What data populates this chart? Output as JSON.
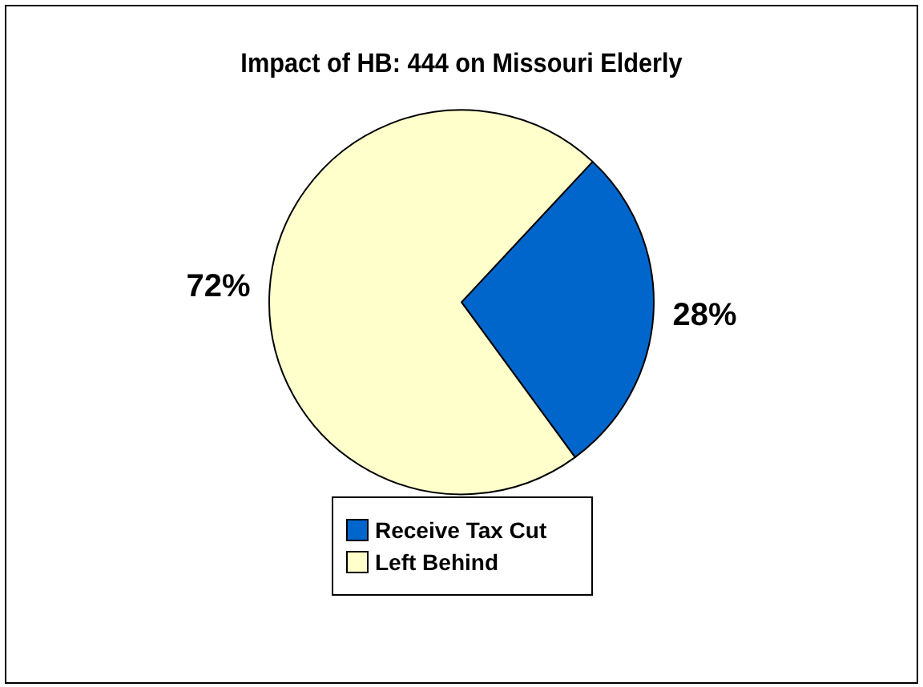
{
  "chart_data": {
    "type": "pie",
    "title": "Impact of HB: 444 on Missouri Elderly",
    "categories": [
      "Receive Tax Cut",
      "Left Behind"
    ],
    "values": [
      28,
      72
    ],
    "colors": [
      "#0066cc",
      "#ffffcc"
    ],
    "value_labels": [
      "28%",
      "72%"
    ],
    "legend": "bottom"
  }
}
